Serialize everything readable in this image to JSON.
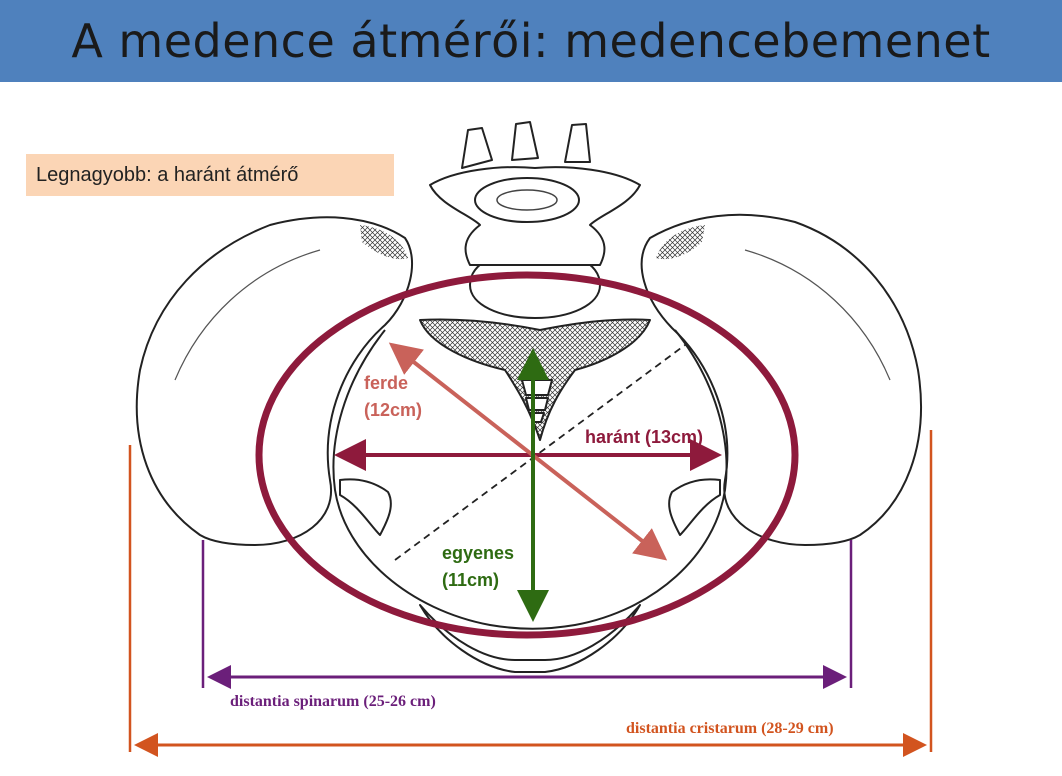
{
  "title": "A medence átmérői: medencebemenet",
  "note": "Legnagyobb: a haránt átmérő",
  "labels": {
    "ferde_name": "ferde",
    "ferde_value": "(12cm)",
    "harant": "haránt (13cm)",
    "egyenes_name": "egyenes",
    "egyenes_value": "(11cm)",
    "spinarum": "distantia spinarum (25-26 cm)",
    "cristarum": "distantia cristarum (28-29 cm)"
  },
  "colors": {
    "title_bar": "#4f81bd",
    "note_bg": "#fbd5b5",
    "ellipse": "#8e1a3c",
    "harant": "#8e1a3c",
    "ferde": "#c9625a",
    "egyenes": "#2e6b12",
    "spinarum": "#6b1f7a",
    "cristarum": "#d2541f"
  },
  "icons": [
    "pelvis-illustration"
  ]
}
